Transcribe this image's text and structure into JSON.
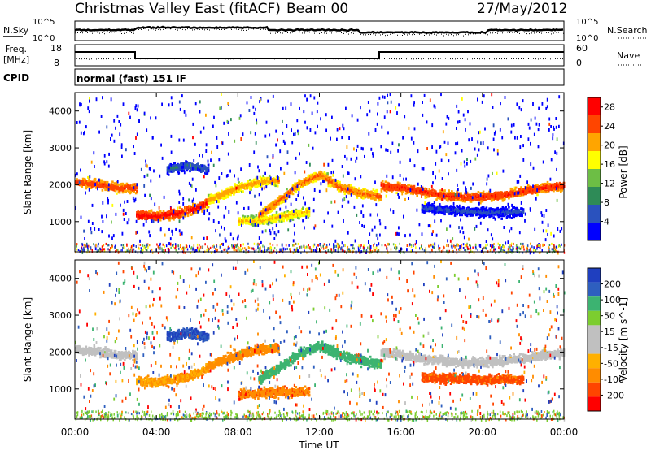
{
  "header": {
    "title": "Christmas Valley East (fitACF)",
    "beam": "Beam 00",
    "date": "27/May/2012"
  },
  "strip_labels": {
    "nsky": "N.Sky",
    "nsearch": "N.Search",
    "freq_line1": "Freq.",
    "freq_line2": "[MHz]",
    "nave": "Nave",
    "cpid": "CPID",
    "cpid_text": "normal (fast) 151 IF",
    "noise_left_ticks": [
      "10^5",
      "10^0"
    ],
    "noise_right_ticks": [
      "10^5",
      "10^0"
    ],
    "freq_ticks": [
      "18",
      "8"
    ],
    "nave_ticks": [
      "60",
      "0"
    ]
  },
  "colors": {
    "power_scale": [
      "#0000ff",
      "#2a52be",
      "#2e8b57",
      "#6dbe45",
      "#ffff00",
      "#ffa500",
      "#ff4500",
      "#ff0000"
    ],
    "velocity_scale": [
      "#ff0000",
      "#ff4500",
      "#ff8c00",
      "#ffa500",
      "#c0c0c0",
      "#c0c0c0",
      "#7ccd2f",
      "#3cb371",
      "#2e8b8b",
      "#2e5fbf",
      "#1f3fbf"
    ]
  },
  "chart_data": [
    {
      "type": "heatmap",
      "title": "Power",
      "ylabel": "Slant Range [km]",
      "xlabel": "Time UT",
      "x_ticks": [
        "00:00",
        "04:00",
        "08:00",
        "12:00",
        "16:00",
        "20:00",
        "00:00"
      ],
      "y_ticks": [
        "1000",
        "2000",
        "3000",
        "4000"
      ],
      "ylim": [
        180,
        4500
      ],
      "xlim_hours": [
        0,
        24
      ],
      "colorbar_label": "Power [dB]",
      "colorbar_ticks": [
        "4",
        "8",
        "12",
        "16",
        "20",
        "24",
        "28"
      ],
      "colorbar_range": [
        0,
        30
      ],
      "bands": [
        {
          "t": [
            0,
            1,
            2,
            3
          ],
          "r": [
            2100,
            2050,
            1950,
            1950
          ],
          "power": 26
        },
        {
          "t": [
            3,
            4,
            5,
            6,
            6.5
          ],
          "r": [
            1200,
            1180,
            1250,
            1400,
            1550
          ],
          "power": 28
        },
        {
          "t": [
            6.5,
            8,
            9,
            10
          ],
          "r": [
            1600,
            1950,
            2100,
            2150
          ],
          "power": 22
        },
        {
          "t": [
            8,
            9,
            10,
            11,
            11.5
          ],
          "r": [
            1050,
            1050,
            1150,
            1250,
            1300
          ],
          "power": 20
        },
        {
          "t": [
            9,
            10,
            11,
            12,
            13,
            14,
            15
          ],
          "r": [
            1200,
            1600,
            2050,
            2300,
            1950,
            1800,
            1700
          ],
          "power": 24
        },
        {
          "t": [
            15,
            16,
            17,
            18,
            19,
            20,
            21,
            22,
            23,
            24
          ],
          "r": [
            2000,
            1950,
            1850,
            1750,
            1700,
            1700,
            1750,
            1850,
            1950,
            2000
          ],
          "power": 27
        },
        {
          "t": [
            17,
            18,
            19,
            20,
            21,
            22
          ],
          "r": [
            1400,
            1350,
            1320,
            1280,
            1280,
            1300
          ],
          "power": 6
        },
        {
          "t": [
            4.5,
            5,
            5.5,
            6,
            6.5
          ],
          "r": [
            2450,
            2500,
            2550,
            2500,
            2450
          ],
          "power": 8
        }
      ]
    },
    {
      "type": "heatmap",
      "title": "Velocity",
      "ylabel": "Slant Range [km]",
      "xlabel": "Time UT",
      "x_ticks": [
        "00:00",
        "04:00",
        "08:00",
        "12:00",
        "16:00",
        "20:00",
        "00:00"
      ],
      "y_ticks": [
        "1000",
        "2000",
        "3000",
        "4000"
      ],
      "ylim": [
        180,
        4500
      ],
      "xlim_hours": [
        0,
        24
      ],
      "colorbar_label": "Velocity [m s^-1]",
      "colorbar_ticks": [
        "200",
        "100",
        "50",
        "15",
        "-15",
        "-50",
        "-100",
        "-200"
      ],
      "bands": [
        {
          "t": [
            0,
            1,
            2,
            3
          ],
          "r": [
            2100,
            2050,
            1950,
            1950
          ],
          "velocity": 0
        },
        {
          "t": [
            3,
            4,
            5,
            6,
            6.5
          ],
          "r": [
            1250,
            1200,
            1300,
            1450,
            1600
          ],
          "velocity": -30
        },
        {
          "t": [
            6.5,
            8,
            9,
            10
          ],
          "r": [
            1650,
            1950,
            2100,
            2150
          ],
          "velocity": -40
        },
        {
          "t": [
            8,
            9,
            10,
            11,
            11.5
          ],
          "r": [
            900,
            900,
            950,
            950,
            950
          ],
          "velocity": -70
        },
        {
          "t": [
            9,
            10,
            11,
            12,
            13,
            14,
            15
          ],
          "r": [
            1300,
            1600,
            2000,
            2200,
            1950,
            1800,
            1700
          ],
          "velocity": 40
        },
        {
          "t": [
            15,
            16,
            17,
            18,
            19,
            20,
            21,
            22,
            23,
            24
          ],
          "r": [
            2000,
            1950,
            1850,
            1800,
            1750,
            1750,
            1800,
            1850,
            1950,
            2000
          ],
          "velocity": 0
        },
        {
          "t": [
            17,
            18,
            19,
            20,
            21,
            22
          ],
          "r": [
            1350,
            1320,
            1300,
            1280,
            1280,
            1300
          ],
          "velocity": -80
        },
        {
          "t": [
            4.5,
            5,
            5.5,
            6,
            6.5
          ],
          "r": [
            2450,
            2500,
            2550,
            2500,
            2450
          ],
          "velocity": 150
        }
      ]
    }
  ]
}
